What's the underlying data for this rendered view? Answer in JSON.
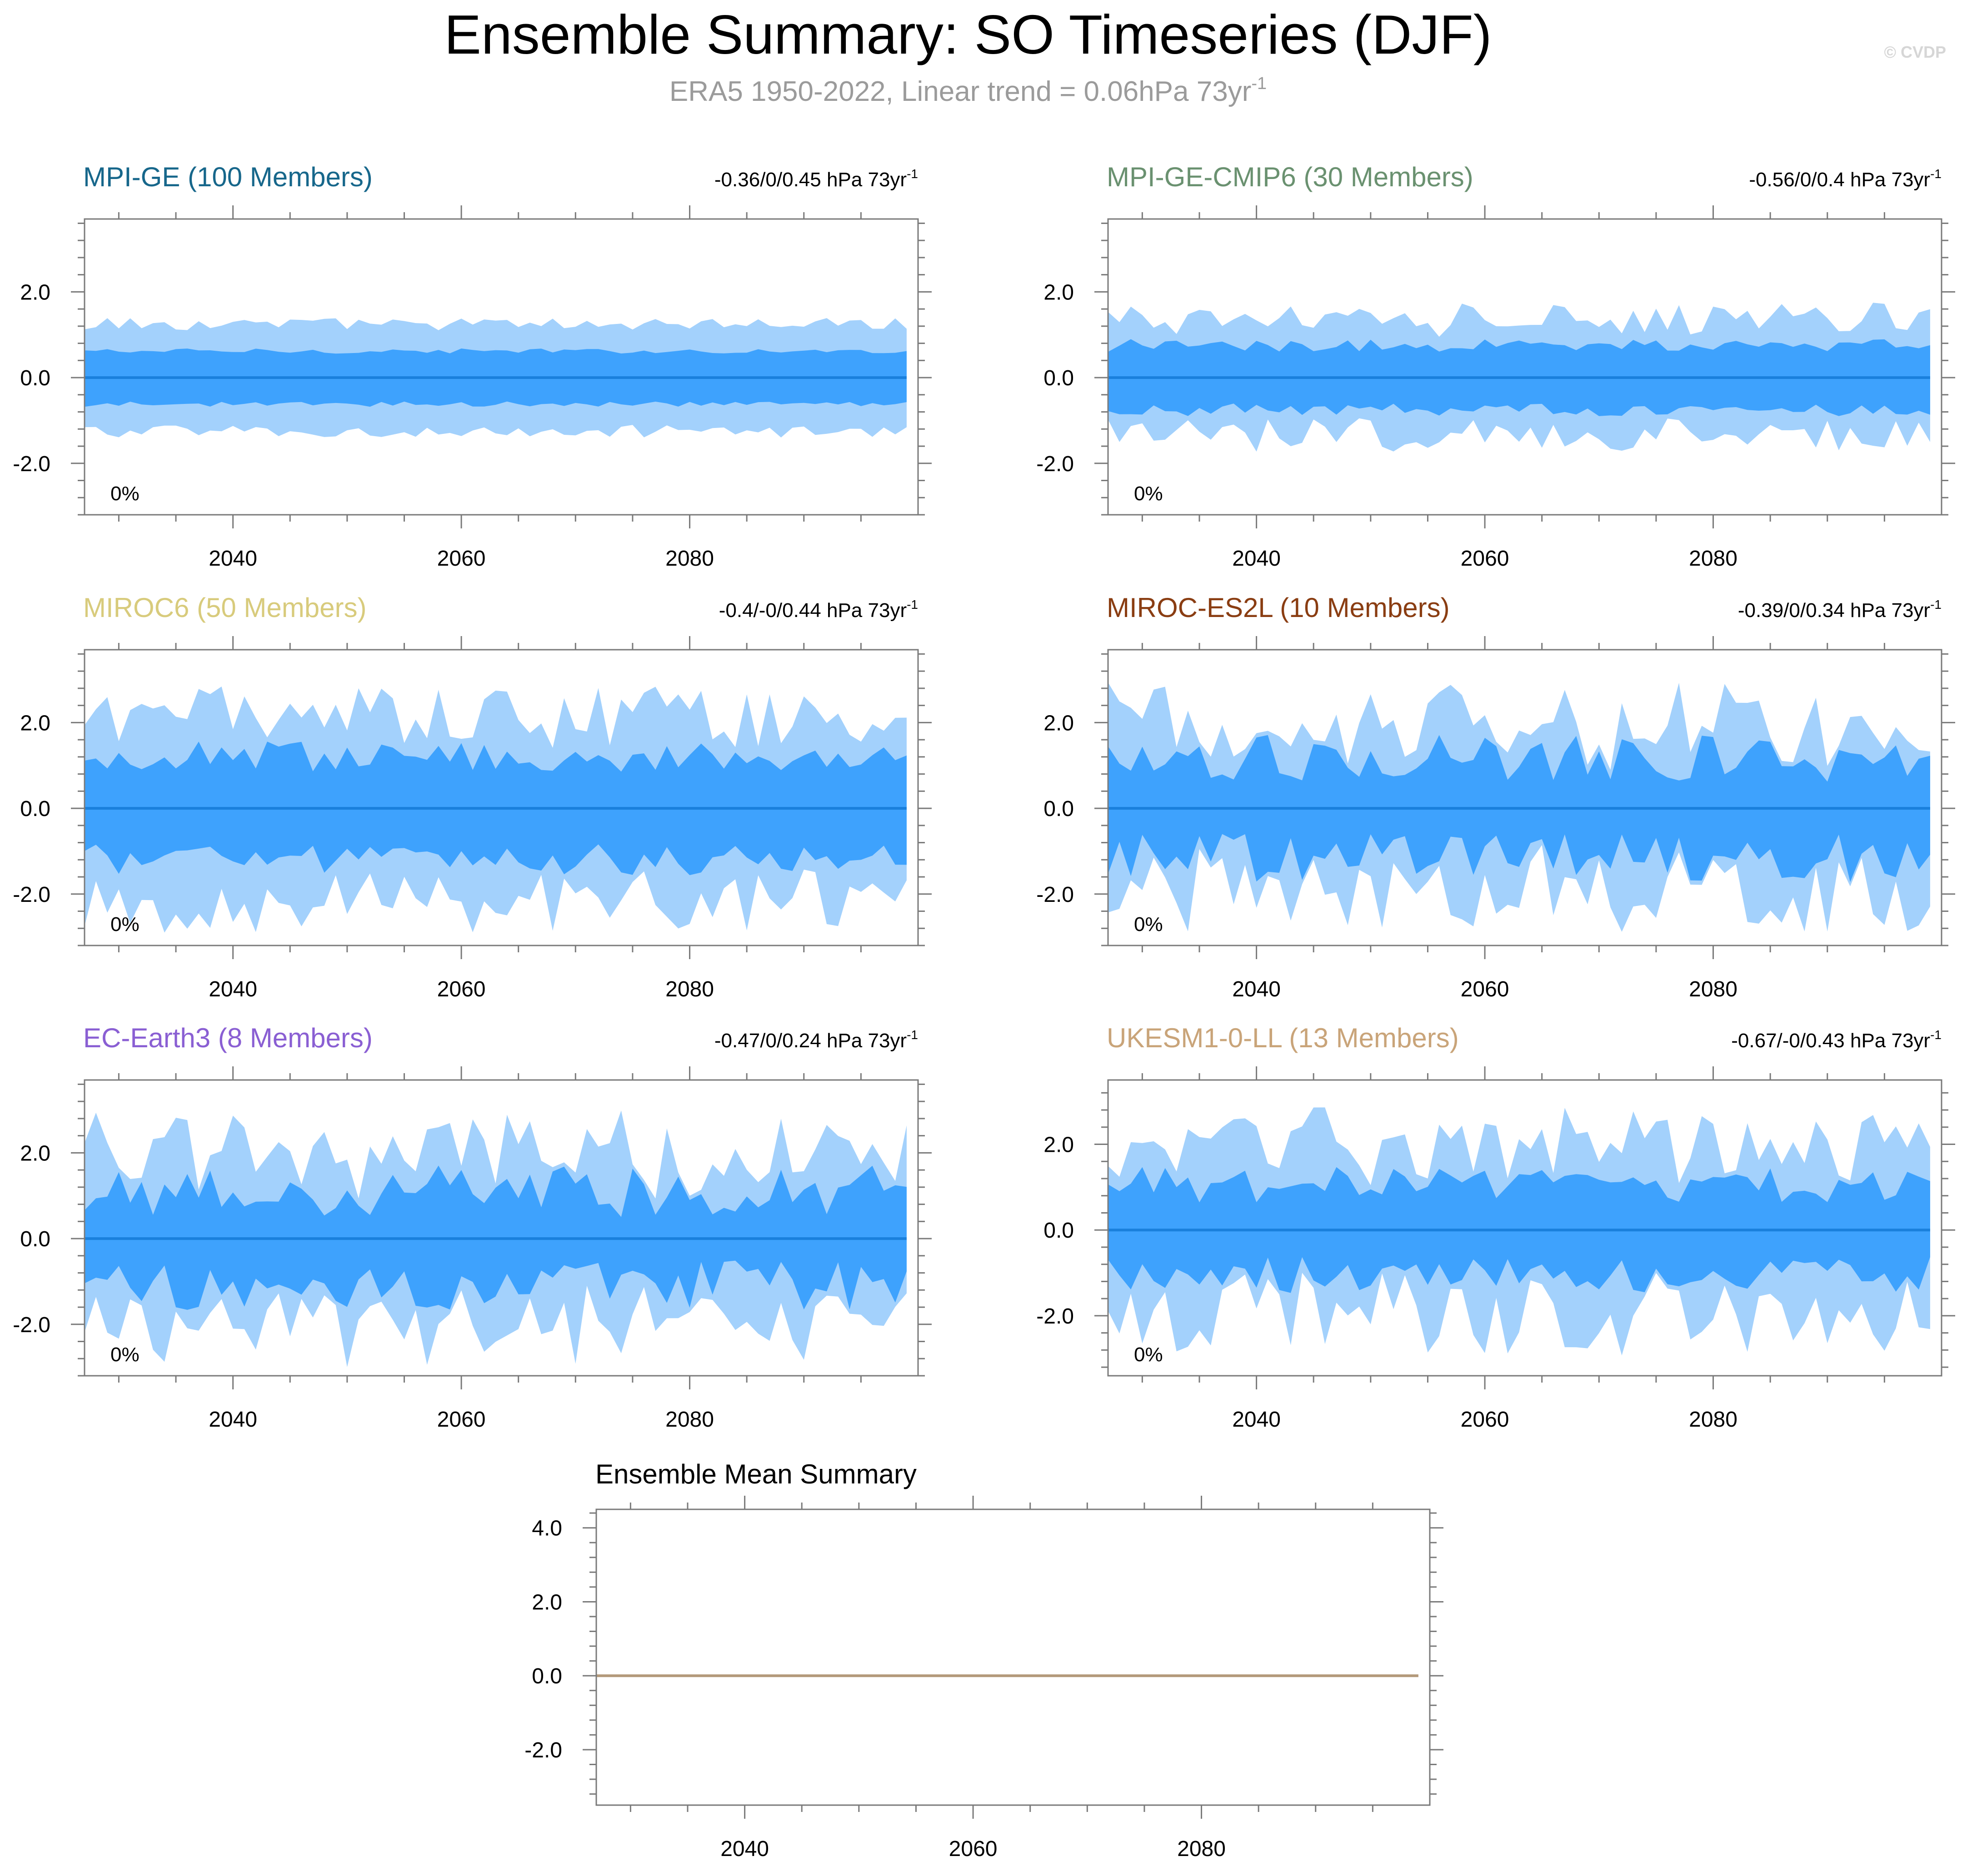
{
  "figure": {
    "title": "Ensemble Summary: SO Timeseries (DJF)",
    "subtitle": "ERA5 1950-2022, Linear trend = 0.06hPa 73yr",
    "subtitle_superscript": "-1",
    "copyright": "© CVDP"
  },
  "colors": {
    "outer_band": "#a3d1fc",
    "inner_band": "#3ea2fd",
    "median_line": "#1a80dc",
    "subtitle": "#9b9b9b",
    "ensemble_mean_line": "#b3997a"
  },
  "chart_data": [
    {
      "type": "area",
      "title": "MPI-GE (100 Members)",
      "title_color": "#17678b",
      "trend_text": "-0.36/0/0.45 hPa 73yr",
      "trend_superscript": "-1",
      "pct_label": "0%",
      "xlim": [
        2027,
        2100
      ],
      "ylim": [
        -3.2,
        3.7
      ],
      "xticks": [
        2040,
        2060,
        2080
      ],
      "yticks": [
        2.0,
        0.0,
        -2.0
      ],
      "ytick_labels": [
        "2.0",
        "0.0",
        "-2.0"
      ],
      "x_start": 2027,
      "x_end": 2099,
      "amp_outer": 1.25,
      "amp_inner": 0.62,
      "var_outer": 0.12,
      "var_inner": 0.1
    },
    {
      "type": "area",
      "title": "MPI-GE-CMIP6 (30 Members)",
      "title_color": "#6a9170",
      "trend_text": "-0.56/0/0.4 hPa 73yr",
      "trend_superscript": "-1",
      "pct_label": "0%",
      "xlim": [
        2027,
        2100
      ],
      "ylim": [
        -3.2,
        3.7
      ],
      "xticks": [
        2040,
        2060,
        2080
      ],
      "yticks": [
        2.0,
        0.0,
        -2.0
      ],
      "ytick_labels": [
        "2.0",
        "0.0",
        "-2.0"
      ],
      "x_start": 2027,
      "x_end": 2099,
      "amp_outer": 1.35,
      "amp_inner": 0.75,
      "var_outer": 0.3,
      "var_inner": 0.2
    },
    {
      "type": "area",
      "title": "MIROC6 (50 Members)",
      "title_color": "#d8cb7c",
      "trend_text": "-0.4/-0/0.44 hPa 73yr",
      "trend_superscript": "-1",
      "pct_label": "0%",
      "xlim": [
        2027,
        2100
      ],
      "ylim": [
        -3.2,
        3.7
      ],
      "xticks": [
        2040,
        2060,
        2080
      ],
      "yticks": [
        2.0,
        0.0,
        -2.0
      ],
      "ytick_labels": [
        "2.0",
        "0.0",
        "-2.0"
      ],
      "x_start": 2027,
      "x_end": 2099,
      "amp_outer": 2.15,
      "amp_inner": 1.2,
      "var_outer": 0.35,
      "var_inner": 0.3
    },
    {
      "type": "area",
      "title": "MIROC-ES2L (10 Members)",
      "title_color": "#8a3d12",
      "trend_text": "-0.39/0/0.34 hPa 73yr",
      "trend_superscript": "-1",
      "pct_label": "0%",
      "xlim": [
        2027,
        2100
      ],
      "ylim": [
        -3.2,
        3.7
      ],
      "xticks": [
        2040,
        2060,
        2080
      ],
      "yticks": [
        2.0,
        0.0,
        -2.0
      ],
      "ytick_labels": [
        "2.0",
        "0.0",
        "-2.0"
      ],
      "x_start": 2027,
      "x_end": 2099,
      "amp_outer": 1.9,
      "amp_inner": 1.15,
      "var_outer": 0.55,
      "var_inner": 0.5
    },
    {
      "type": "area",
      "title": "EC-Earth3 (8 Members)",
      "title_color": "#8a5fd3",
      "trend_text": "-0.47/0/0.24 hPa 73yr",
      "trend_superscript": "-1",
      "pct_label": "0%",
      "xlim": [
        2027,
        2100
      ],
      "ylim": [
        -3.2,
        3.7
      ],
      "xticks": [
        2040,
        2060,
        2080
      ],
      "yticks": [
        2.0,
        0.0,
        -2.0
      ],
      "ytick_labels": [
        "2.0",
        "0.0",
        "-2.0"
      ],
      "x_start": 2027,
      "x_end": 2099,
      "amp_outer": 1.95,
      "amp_inner": 1.1,
      "var_outer": 0.55,
      "var_inner": 0.55
    },
    {
      "type": "area",
      "title": "UKESM1-0-LL (13 Members)",
      "title_color": "#c9a479",
      "trend_text": "-0.67/-0/0.43 hPa 73yr",
      "trend_superscript": "-1",
      "pct_label": "0%",
      "xlim": [
        2027,
        2100
      ],
      "ylim": [
        -3.4,
        3.5
      ],
      "xticks": [
        2040,
        2060,
        2080
      ],
      "yticks": [
        2.0,
        0.0,
        -2.0
      ],
      "ytick_labels": [
        "2.0",
        "0.0",
        "-2.0"
      ],
      "x_start": 2027,
      "x_end": 2099,
      "amp_outer": 1.95,
      "amp_inner": 1.05,
      "var_outer": 0.5,
      "var_inner": 0.4
    },
    {
      "type": "line",
      "title": "Ensemble Mean Summary",
      "title_color": "#000000",
      "xlim": [
        2027,
        2100
      ],
      "ylim": [
        -3.5,
        4.5
      ],
      "xticks": [
        2040,
        2060,
        2080
      ],
      "yticks": [
        4.0,
        2.0,
        0.0,
        -2.0
      ],
      "ytick_labels": [
        "4.0",
        "2.0",
        "0.0",
        "-2.0"
      ],
      "series": [
        {
          "name": "Ensemble Mean",
          "x": [
            2027,
            2099
          ],
          "y": [
            0,
            0
          ]
        }
      ]
    }
  ]
}
